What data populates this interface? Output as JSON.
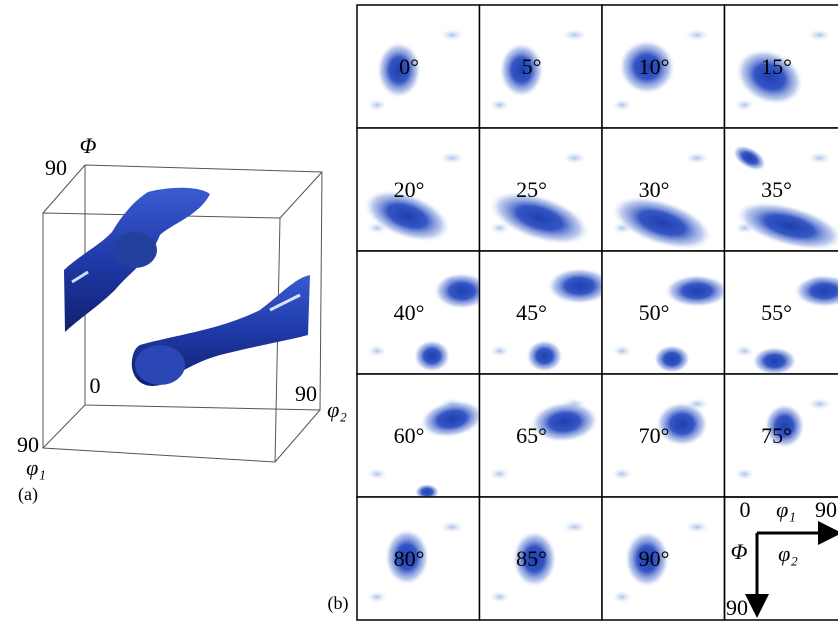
{
  "panel_a": {
    "axis_top": "Φ",
    "top_value": "90",
    "origin_value": "0",
    "right_value": "90",
    "right_axis": "φ₂",
    "bottom_value": "90",
    "bottom_axis": "φ₁",
    "label": "(a)"
  },
  "panel_b": {
    "sections": [
      "0°",
      "5°",
      "10°",
      "15°",
      "20°",
      "25°",
      "30°",
      "35°",
      "40°",
      "45°",
      "50°",
      "55°",
      "60°",
      "65°",
      "70°",
      "75°",
      "80°",
      "85°",
      "90°"
    ],
    "key": {
      "h_start": "0",
      "h_axis": "φ₁",
      "h_end": "90",
      "v_axis": "Φ",
      "inner_axis": "φ₂",
      "v_end": "90"
    },
    "label": "(b)"
  }
}
